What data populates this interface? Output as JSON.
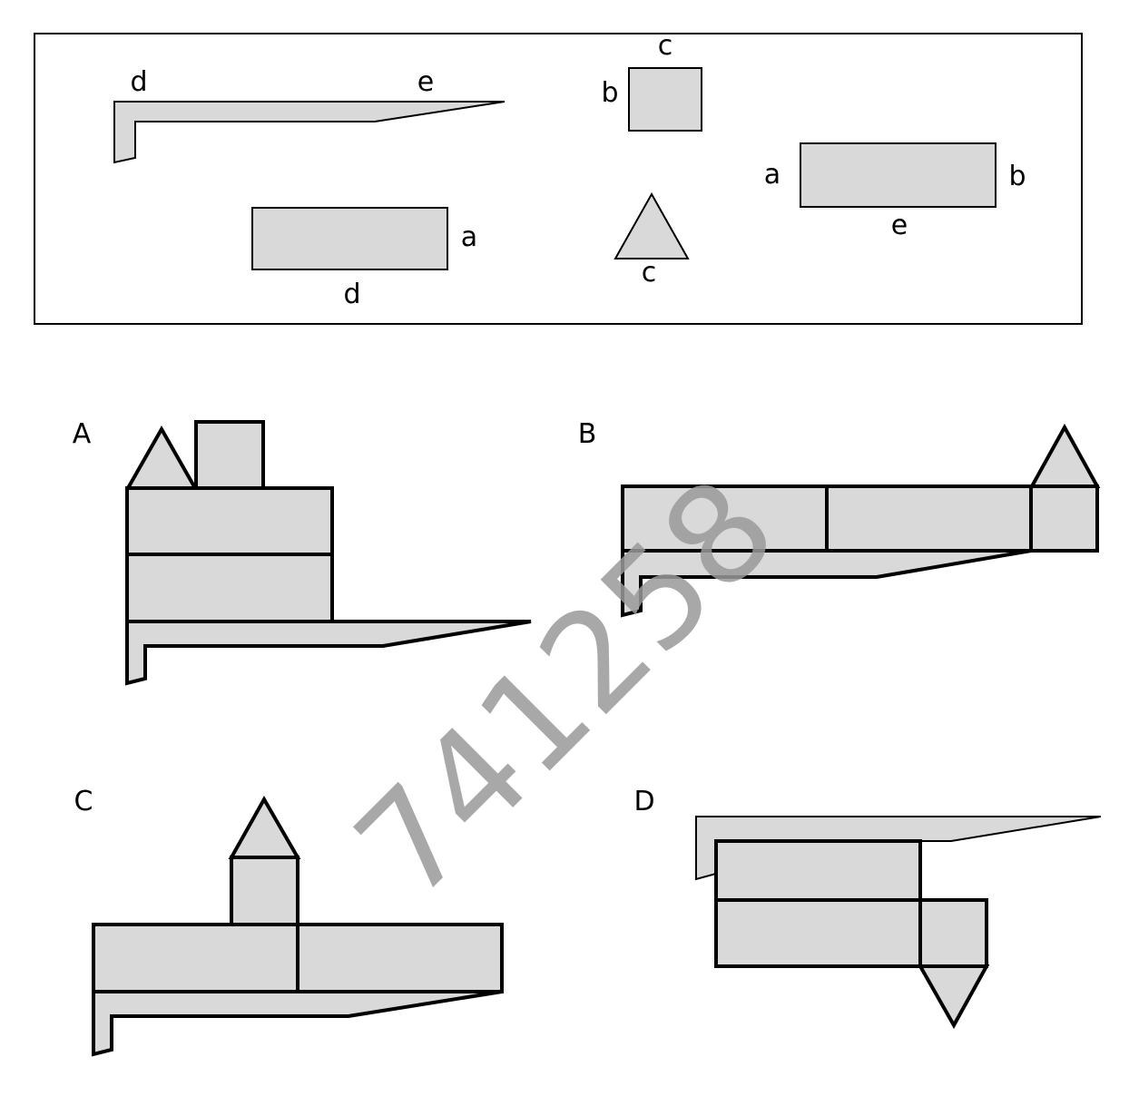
{
  "pieces_box": {
    "labels": {
      "L_piece": {
        "short_edge": "d",
        "long_edge": "e"
      },
      "square": {
        "top": "c",
        "left": "b"
      },
      "rect_da": {
        "right": "a",
        "bottom": "d"
      },
      "triangle": {
        "bottom": "c"
      },
      "rect_abe": {
        "left": "a",
        "right": "b",
        "bottom": "e"
      }
    }
  },
  "options": [
    {
      "letter": "A"
    },
    {
      "letter": "B"
    },
    {
      "letter": "C"
    },
    {
      "letter": "D"
    }
  ],
  "watermark": "741258",
  "colors": {
    "fill": "#d9d9d9",
    "stroke": "#000000",
    "watermark": "#9a9a9a"
  }
}
